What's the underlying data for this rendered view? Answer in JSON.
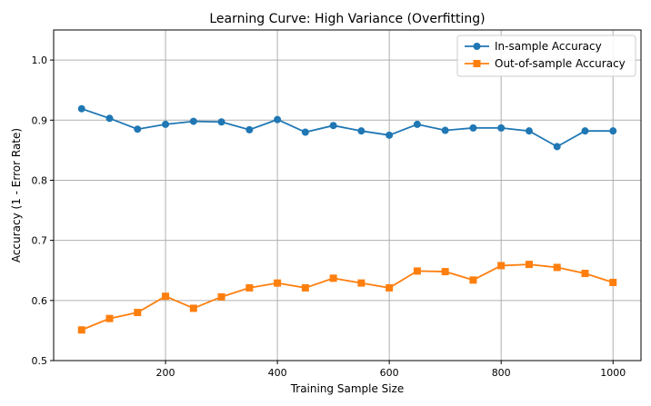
{
  "chart_data": {
    "type": "line",
    "title": "Learning Curve: High Variance (Overfitting)",
    "xlabel": "Training Sample Size",
    "ylabel": "Accuracy (1 - Error Rate)",
    "xlim": [
      0,
      1050
    ],
    "ylim": [
      0.5,
      1.05
    ],
    "x_ticks": [
      200,
      400,
      600,
      800,
      1000
    ],
    "y_ticks": [
      0.5,
      0.6,
      0.7,
      0.8,
      0.9,
      1.0
    ],
    "x_tick_labels": [
      "200",
      "400",
      "600",
      "800",
      "1000"
    ],
    "y_tick_labels": [
      "0.5",
      "0.6",
      "0.7",
      "0.8",
      "0.9",
      "1.0"
    ],
    "grid": true,
    "legend_position": "top-right",
    "x": [
      50,
      100,
      150,
      200,
      250,
      300,
      350,
      400,
      450,
      500,
      550,
      600,
      650,
      700,
      750,
      800,
      850,
      900,
      950,
      1000
    ],
    "series": [
      {
        "name": "In-sample Accuracy",
        "color": "#1f77b4",
        "marker": "circle",
        "values": [
          0.919,
          0.903,
          0.885,
          0.893,
          0.898,
          0.897,
          0.884,
          0.901,
          0.88,
          0.891,
          0.882,
          0.875,
          0.893,
          0.883,
          0.887,
          0.887,
          0.882,
          0.856,
          0.882,
          0.882
        ]
      },
      {
        "name": "Out-of-sample Accuracy",
        "color": "#ff7f0e",
        "marker": "square",
        "values": [
          0.551,
          0.57,
          0.58,
          0.607,
          0.587,
          0.606,
          0.621,
          0.629,
          0.621,
          0.637,
          0.629,
          0.621,
          0.649,
          0.648,
          0.634,
          0.658,
          0.66,
          0.655,
          0.645,
          0.63
        ]
      }
    ]
  }
}
